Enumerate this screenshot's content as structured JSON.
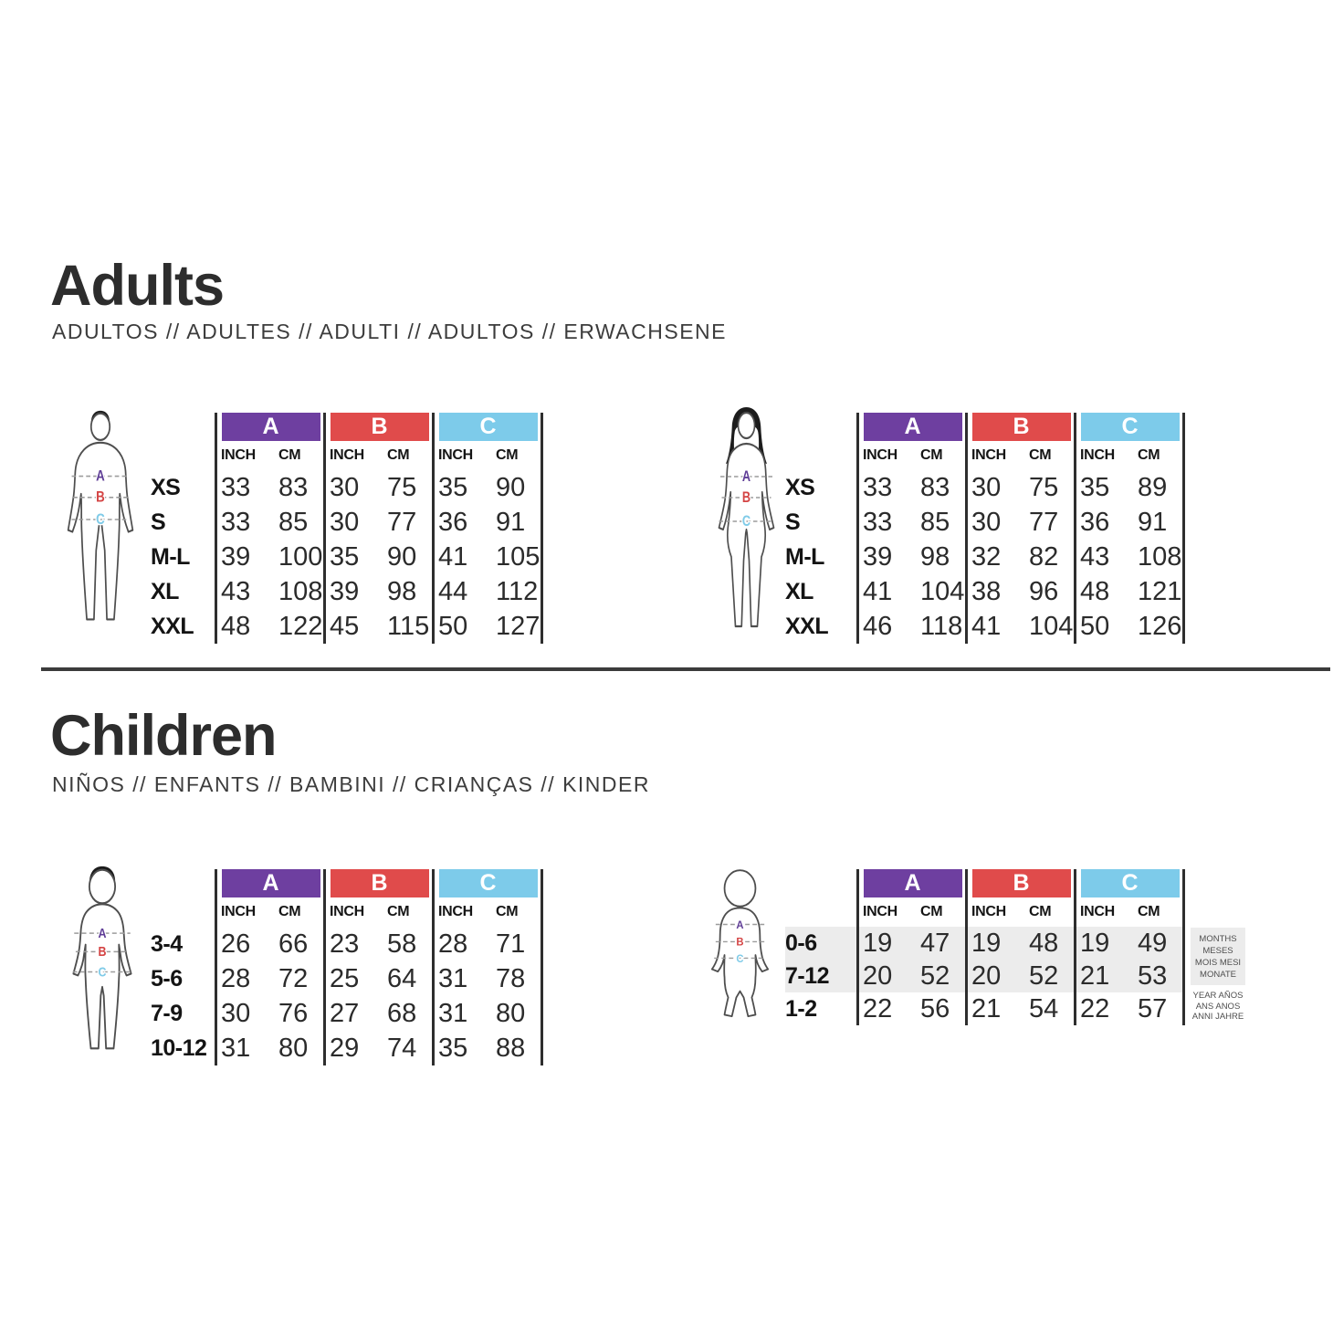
{
  "sections": {
    "adults": {
      "title": "Adults",
      "subtitle": "ADULTOS // ADULTES // ADULTI // ADULTOS // ERWACHSENE"
    },
    "children": {
      "title": "Children",
      "subtitle": "NIÑOS // ENFANTS // BAMBINI // CRIANÇAS // KINDER"
    }
  },
  "columns": {
    "a": "A",
    "b": "B",
    "c": "C",
    "inch": "INCH",
    "cm": "CM"
  },
  "colors": {
    "a": "#6E3FA0",
    "b": "#E04B4B",
    "c": "#7DCBEA",
    "letter_a": "#5F3D96",
    "letter_b": "#D44444",
    "letter_c": "#7FCBE8"
  },
  "tables": {
    "adults_male": {
      "rows": [
        {
          "label": "XS",
          "cells": [
            "33",
            "83",
            "30",
            "75",
            "35",
            "90"
          ]
        },
        {
          "label": "S",
          "cells": [
            "33",
            "85",
            "30",
            "77",
            "36",
            "91"
          ]
        },
        {
          "label": "M-L",
          "cells": [
            "39",
            "100",
            "35",
            "90",
            "41",
            "105"
          ]
        },
        {
          "label": "XL",
          "cells": [
            "43",
            "108",
            "39",
            "98",
            "44",
            "112"
          ]
        },
        {
          "label": "XXL",
          "cells": [
            "48",
            "122",
            "45",
            "115",
            "50",
            "127"
          ]
        }
      ]
    },
    "adults_female": {
      "rows": [
        {
          "label": "XS",
          "cells": [
            "33",
            "83",
            "30",
            "75",
            "35",
            "89"
          ]
        },
        {
          "label": "S",
          "cells": [
            "33",
            "85",
            "30",
            "77",
            "36",
            "91"
          ]
        },
        {
          "label": "M-L",
          "cells": [
            "39",
            "98",
            "32",
            "82",
            "43",
            "108"
          ]
        },
        {
          "label": "XL",
          "cells": [
            "41",
            "104",
            "38",
            "96",
            "48",
            "121"
          ]
        },
        {
          "label": "XXL",
          "cells": [
            "46",
            "118",
            "41",
            "104",
            "50",
            "126"
          ]
        }
      ]
    },
    "children": {
      "rows": [
        {
          "label": "3-4",
          "cells": [
            "26",
            "66",
            "23",
            "58",
            "28",
            "71"
          ]
        },
        {
          "label": "5-6",
          "cells": [
            "28",
            "72",
            "25",
            "64",
            "31",
            "78"
          ]
        },
        {
          "label": "7-9",
          "cells": [
            "30",
            "76",
            "27",
            "68",
            "31",
            "80"
          ]
        },
        {
          "label": "10-12",
          "cells": [
            "31",
            "80",
            "29",
            "74",
            "35",
            "88"
          ]
        }
      ]
    },
    "baby": {
      "rows": [
        {
          "label": "0-6",
          "cells": [
            "19",
            "47",
            "19",
            "48",
            "19",
            "49"
          ]
        },
        {
          "label": "7-12",
          "cells": [
            "20",
            "52",
            "20",
            "52",
            "21",
            "53"
          ]
        },
        {
          "label": "1-2",
          "cells": [
            "22",
            "56",
            "21",
            "54",
            "22",
            "57"
          ]
        }
      ]
    }
  },
  "notes": {
    "months": [
      "MONTHS",
      "MESES",
      "MOIS MESI",
      "MONATE"
    ],
    "years": [
      "YEAR AÑOS",
      "ANS ANOS",
      "ANNI JAHRE"
    ]
  }
}
